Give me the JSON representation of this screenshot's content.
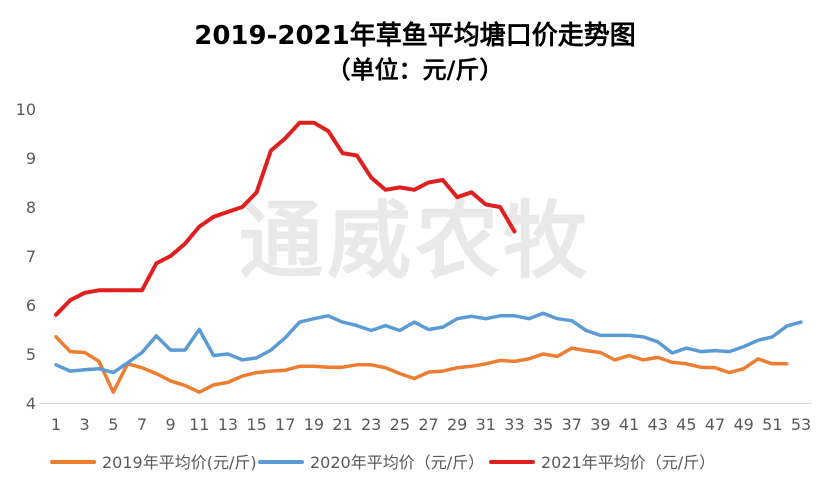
{
  "chart_data": {
    "type": "line",
    "title": "2019-2021年草鱼平均塘口价走势图",
    "subtitle": "（单位：元/斤）",
    "watermark": "通威农牧",
    "xlabel": "",
    "ylabel": "",
    "x_tick_labels": [
      "1",
      "3",
      "5",
      "7",
      "9",
      "11",
      "13",
      "15",
      "17",
      "19",
      "21",
      "23",
      "25",
      "27",
      "29",
      "31",
      "33",
      "35",
      "37",
      "39",
      "41",
      "43",
      "45",
      "47",
      "49",
      "51",
      "53"
    ],
    "x": [
      1,
      2,
      3,
      4,
      5,
      6,
      7,
      8,
      9,
      10,
      11,
      12,
      13,
      14,
      15,
      16,
      17,
      18,
      19,
      20,
      21,
      22,
      23,
      24,
      25,
      26,
      27,
      28,
      29,
      30,
      31,
      32,
      33,
      34,
      35,
      36,
      37,
      38,
      39,
      40,
      41,
      42,
      43,
      44,
      45,
      46,
      47,
      48,
      49,
      50,
      51,
      52,
      53
    ],
    "xlim": [
      1,
      53
    ],
    "ylim": [
      4,
      10
    ],
    "y_ticks": [
      "4",
      "5",
      "6",
      "7",
      "8",
      "9",
      "10"
    ],
    "grid": false,
    "legend_position": "bottom",
    "series": [
      {
        "name": "2019年平均价(元/斤)",
        "color": "#ED7D31",
        "values": [
          5.35,
          5.05,
          5.03,
          4.85,
          4.22,
          4.8,
          4.72,
          4.6,
          4.45,
          4.36,
          4.22,
          4.37,
          4.42,
          4.55,
          4.62,
          4.65,
          4.67,
          4.75,
          4.75,
          4.73,
          4.73,
          4.78,
          4.78,
          4.72,
          4.6,
          4.5,
          4.63,
          4.65,
          4.72,
          4.75,
          4.8,
          4.87,
          4.85,
          4.9,
          5.0,
          4.95,
          5.12,
          5.07,
          5.03,
          4.88,
          4.97,
          4.88,
          4.93,
          4.83,
          4.8,
          4.73,
          4.72,
          4.62,
          4.7,
          4.9,
          4.8,
          4.8,
          null
        ]
      },
      {
        "name": "2020年平均价（元/斤）",
        "color": "#5B9BD5",
        "values": [
          4.78,
          4.65,
          4.68,
          4.7,
          4.62,
          4.82,
          5.03,
          5.37,
          5.08,
          5.08,
          5.5,
          4.97,
          5.0,
          4.88,
          4.92,
          5.08,
          5.33,
          5.65,
          5.72,
          5.78,
          5.65,
          5.58,
          5.48,
          5.58,
          5.48,
          5.65,
          5.5,
          5.55,
          5.72,
          5.77,
          5.72,
          5.78,
          5.78,
          5.72,
          5.83,
          5.72,
          5.68,
          5.48,
          5.38,
          5.38,
          5.38,
          5.35,
          5.25,
          5.02,
          5.12,
          5.05,
          5.07,
          5.05,
          5.15,
          5.28,
          5.35,
          5.57,
          5.65
        ]
      },
      {
        "name": "2021年平均价（元/斤）",
        "color": "#E01F1F",
        "values": [
          5.8,
          6.1,
          6.25,
          6.3,
          6.3,
          6.3,
          6.3,
          6.85,
          7.0,
          7.25,
          7.6,
          7.8,
          7.9,
          8.0,
          8.3,
          9.15,
          9.4,
          9.72,
          9.72,
          9.55,
          9.1,
          9.05,
          8.6,
          8.35,
          8.4,
          8.35,
          8.5,
          8.55,
          8.2,
          8.3,
          8.05,
          8.0,
          7.5,
          null,
          null,
          null,
          null,
          null,
          null,
          null,
          null,
          null,
          null,
          null,
          null,
          null,
          null,
          null,
          null,
          null,
          null,
          null,
          null
        ]
      }
    ]
  }
}
